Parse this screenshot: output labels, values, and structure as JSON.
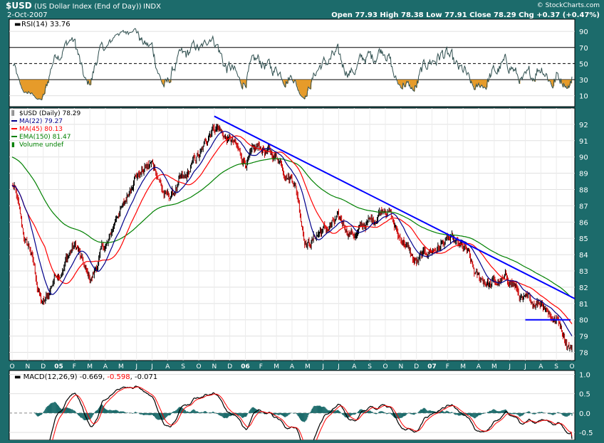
{
  "header": {
    "symbol": "$USD",
    "description": "(US Dollar Index (End of Day))",
    "exchange": "INDX",
    "date": "2-Oct-2007",
    "watermark": "© StockCharts.com",
    "quote_line": "Open 77.93  High 78.38  Low 77.91  Close 78.29  Chg +0.37 (+0.47%)"
  },
  "colors": {
    "frame": "#1c6b6b",
    "panel": "#ffffff",
    "price": "#000000",
    "up_bar": "#000000",
    "down_bar": "#cc0000",
    "ma22": "#00008b",
    "ma45": "#ff0000",
    "ema150": "#008000",
    "trendline": "#0000ff",
    "rsi_line": "#2f4f4f",
    "rsi_oversold_fill": "#e69b2a",
    "macd_line": "#000000",
    "macd_signal": "#ff0000",
    "histogram": "#1c6b6b"
  },
  "rsi_panel": {
    "legend": "RSI(14) 33.76",
    "axis_labels": [
      "90",
      "70",
      "50",
      "30",
      "10"
    ]
  },
  "price_panel": {
    "legend": [
      {
        "text": "$USD (Daily) 78.29",
        "color": "#000000",
        "icon": "candle-icon"
      },
      {
        "text": "MA(22) 79.27",
        "color": "#00008b",
        "icon": "line-swatch-icon"
      },
      {
        "text": "MA(45) 80.13",
        "color": "#ff0000",
        "icon": "line-swatch-icon"
      },
      {
        "text": "EMA(150) 81.47",
        "color": "#008000",
        "icon": "line-swatch-icon"
      },
      {
        "text": "Volume undef",
        "color": "#008000",
        "icon": "volume-icon"
      }
    ],
    "axis_labels": [
      "92",
      "91",
      "90",
      "89",
      "88",
      "87",
      "86",
      "85",
      "84",
      "83",
      "82",
      "81",
      "80",
      "79",
      "78"
    ]
  },
  "time_axis": {
    "labels": [
      "O",
      "N",
      "D",
      "05",
      "F",
      "M",
      "A",
      "M",
      "J",
      "J",
      "A",
      "S",
      "O",
      "N",
      "D",
      "06",
      "F",
      "M",
      "A",
      "M",
      "J",
      "J",
      "A",
      "S",
      "O",
      "N",
      "D",
      "07",
      "F",
      "M",
      "A",
      "M",
      "J",
      "J",
      "A",
      "S",
      "O"
    ]
  },
  "macd_panel": {
    "legend_prefix": "MACD(12,26,9)",
    "legend_macd": "-0.669",
    "legend_signal": "-0.598",
    "legend_hist": "-0.071",
    "axis_labels": [
      "1.0",
      "0.5",
      "0.0",
      "-0.5"
    ]
  },
  "chart_data": {
    "type": "line",
    "title": "$USD (US Dollar Index (End of Day)) INDX",
    "x_range": [
      "2004-10",
      "2007-10"
    ],
    "y_range": [
      77.5,
      93
    ],
    "price_anchors": {
      "x": [
        "2004-10",
        "2004-11",
        "2004-12",
        "2005-01",
        "2005-02",
        "2005-03",
        "2005-04",
        "2005-05",
        "2005-06",
        "2005-07",
        "2005-08",
        "2005-09",
        "2005-10",
        "2005-11",
        "2005-12",
        "2006-01",
        "2006-02",
        "2006-03",
        "2006-04",
        "2006-05",
        "2006-06",
        "2006-07",
        "2006-08",
        "2006-09",
        "2006-10",
        "2006-11",
        "2006-12",
        "2007-01",
        "2007-02",
        "2007-03",
        "2007-04",
        "2007-05",
        "2007-06",
        "2007-07",
        "2007-08",
        "2007-09",
        "2007-10"
      ],
      "y": [
        88.2,
        84.5,
        81.0,
        83.0,
        84.5,
        82.5,
        84.5,
        86.8,
        89.0,
        89.5,
        87.5,
        88.5,
        90.0,
        92.0,
        91.0,
        89.8,
        90.5,
        90.0,
        88.8,
        84.8,
        85.5,
        86.0,
        85.3,
        86.0,
        87.0,
        85.0,
        83.5,
        84.3,
        84.8,
        84.3,
        82.5,
        82.2,
        82.4,
        81.0,
        81.2,
        80.0,
        78.3
      ]
    },
    "series": [
      {
        "name": "$USD (Daily)",
        "last": 78.29
      },
      {
        "name": "MA(22)",
        "last": 79.27
      },
      {
        "name": "MA(45)",
        "last": 80.13
      },
      {
        "name": "EMA(150)",
        "last": 81.47
      }
    ],
    "annotations": [
      {
        "type": "trendline",
        "from": [
          "2005-11",
          92.5
        ],
        "to": [
          "2007-10",
          81.3
        ]
      },
      {
        "type": "horizontal_line",
        "from": [
          "2007-07",
          80.0
        ],
        "to": [
          "2007-10",
          80.0
        ]
      }
    ],
    "rsi": {
      "name": "RSI(14)",
      "last": 33.76,
      "levels": [
        30,
        50,
        70
      ]
    },
    "macd": {
      "name": "MACD(12,26,9)",
      "macd": -0.669,
      "signal": -0.598,
      "histogram": -0.071,
      "y_range": [
        -0.7,
        1.1
      ]
    }
  }
}
